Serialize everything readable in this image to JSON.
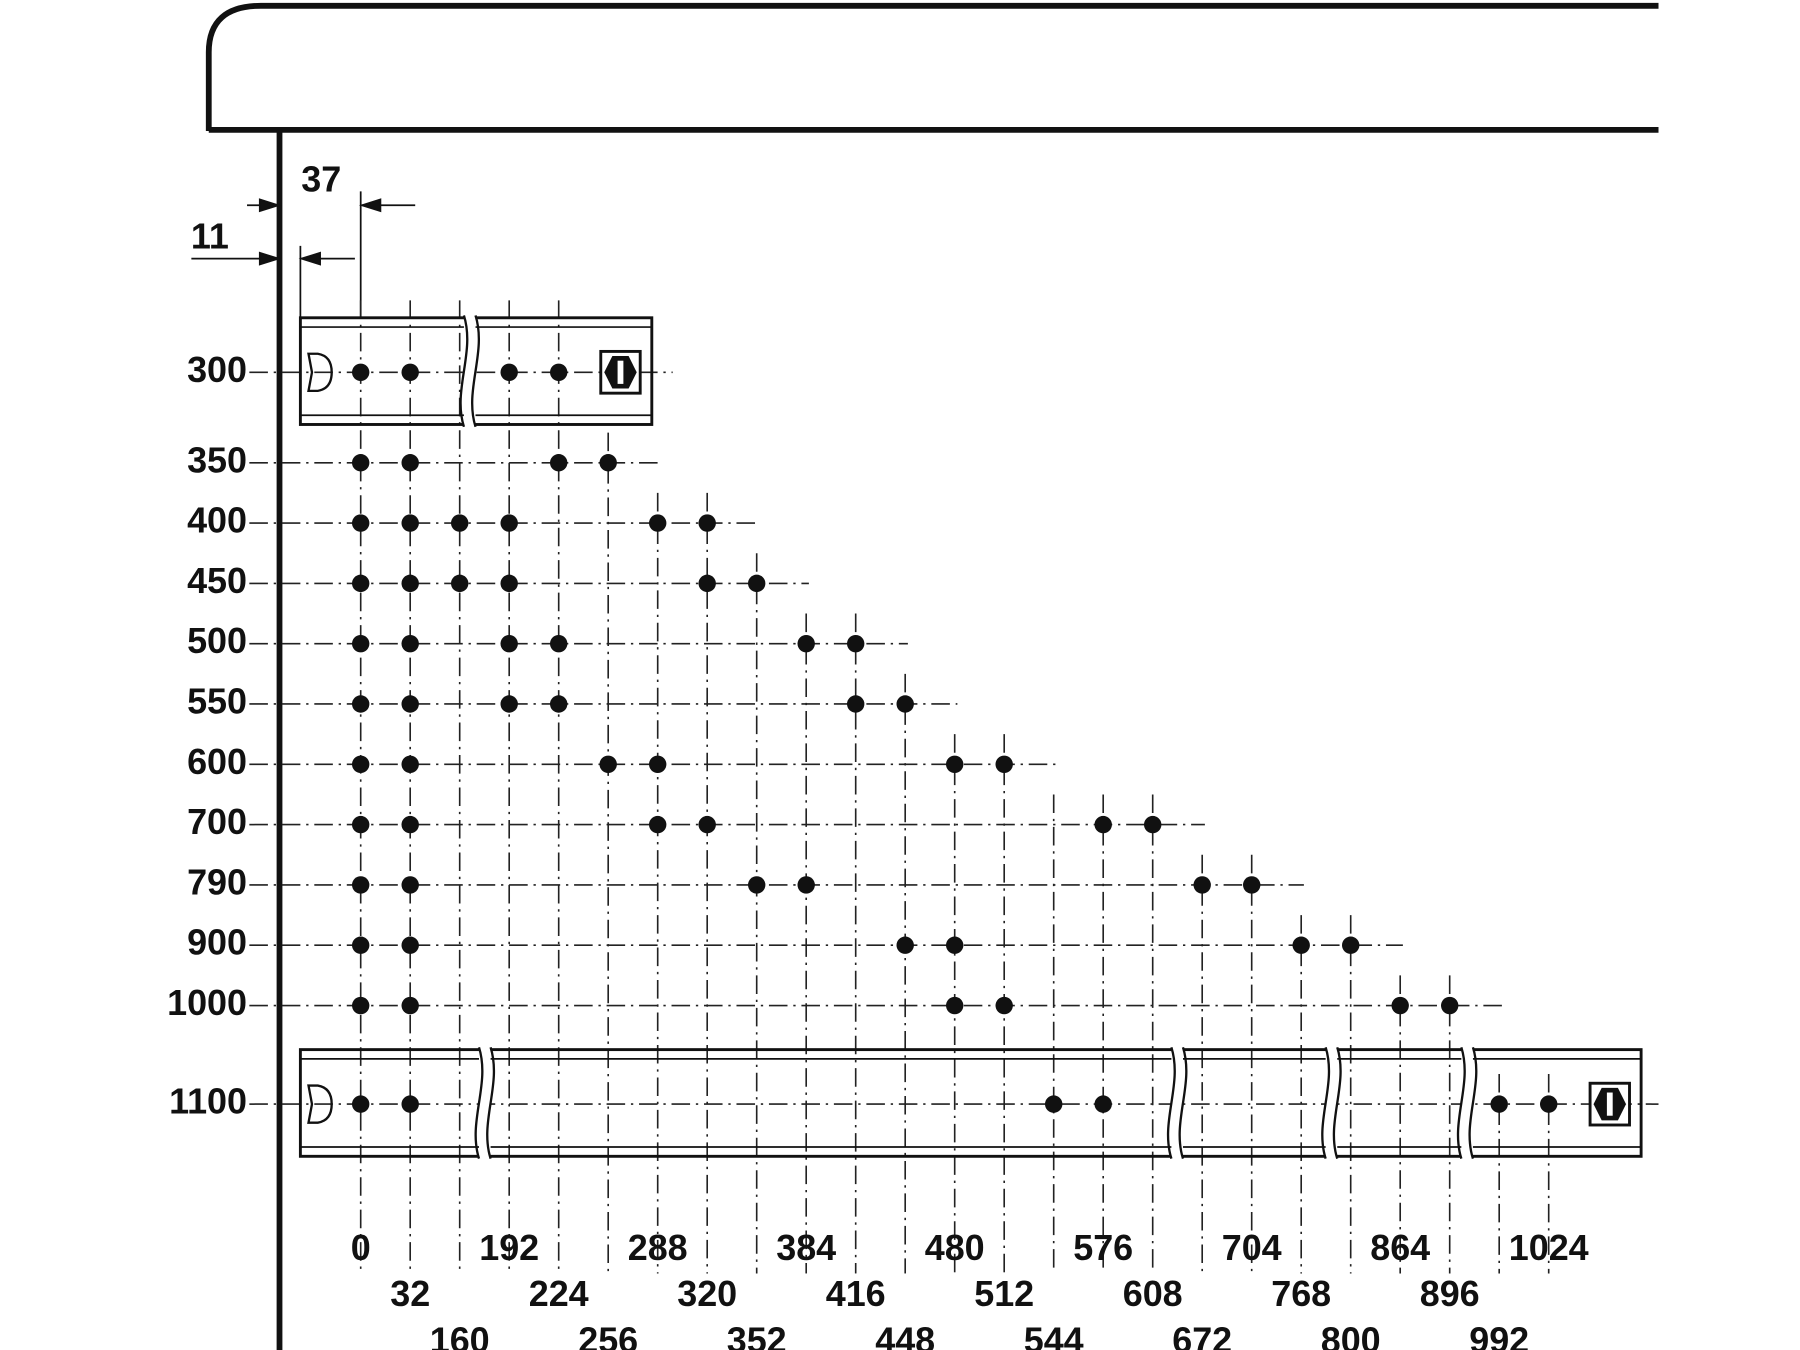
{
  "dimensions": {
    "offset_top": "37",
    "offset_side": "11"
  },
  "columns": [
    0,
    32,
    160,
    192,
    224,
    256,
    288,
    320,
    352,
    384,
    416,
    448,
    480,
    512,
    544,
    576,
    608,
    672,
    704,
    768,
    800,
    864,
    896,
    992,
    1024
  ],
  "rows": [
    {
      "length": 300,
      "holes": [
        0,
        32,
        192,
        224
      ]
    },
    {
      "length": 350,
      "holes": [
        0,
        32,
        224,
        256
      ]
    },
    {
      "length": 400,
      "holes": [
        0,
        32,
        160,
        192,
        288,
        320
      ]
    },
    {
      "length": 450,
      "holes": [
        0,
        32,
        160,
        192,
        320,
        352
      ]
    },
    {
      "length": 500,
      "holes": [
        0,
        32,
        192,
        224,
        384,
        416
      ]
    },
    {
      "length": 550,
      "holes": [
        0,
        32,
        192,
        224,
        416,
        448
      ]
    },
    {
      "length": 600,
      "holes": [
        0,
        32,
        256,
        288,
        480,
        512
      ]
    },
    {
      "length": 700,
      "holes": [
        0,
        32,
        288,
        320,
        576,
        608
      ]
    },
    {
      "length": 790,
      "holes": [
        0,
        32,
        352,
        384,
        672,
        704
      ]
    },
    {
      "length": 900,
      "holes": [
        0,
        32,
        448,
        480,
        768,
        800
      ]
    },
    {
      "length": 1000,
      "holes": [
        0,
        32,
        480,
        512,
        864,
        896
      ]
    },
    {
      "length": 1100,
      "holes": [
        0,
        32,
        544,
        576,
        992,
        1024
      ]
    }
  ]
}
